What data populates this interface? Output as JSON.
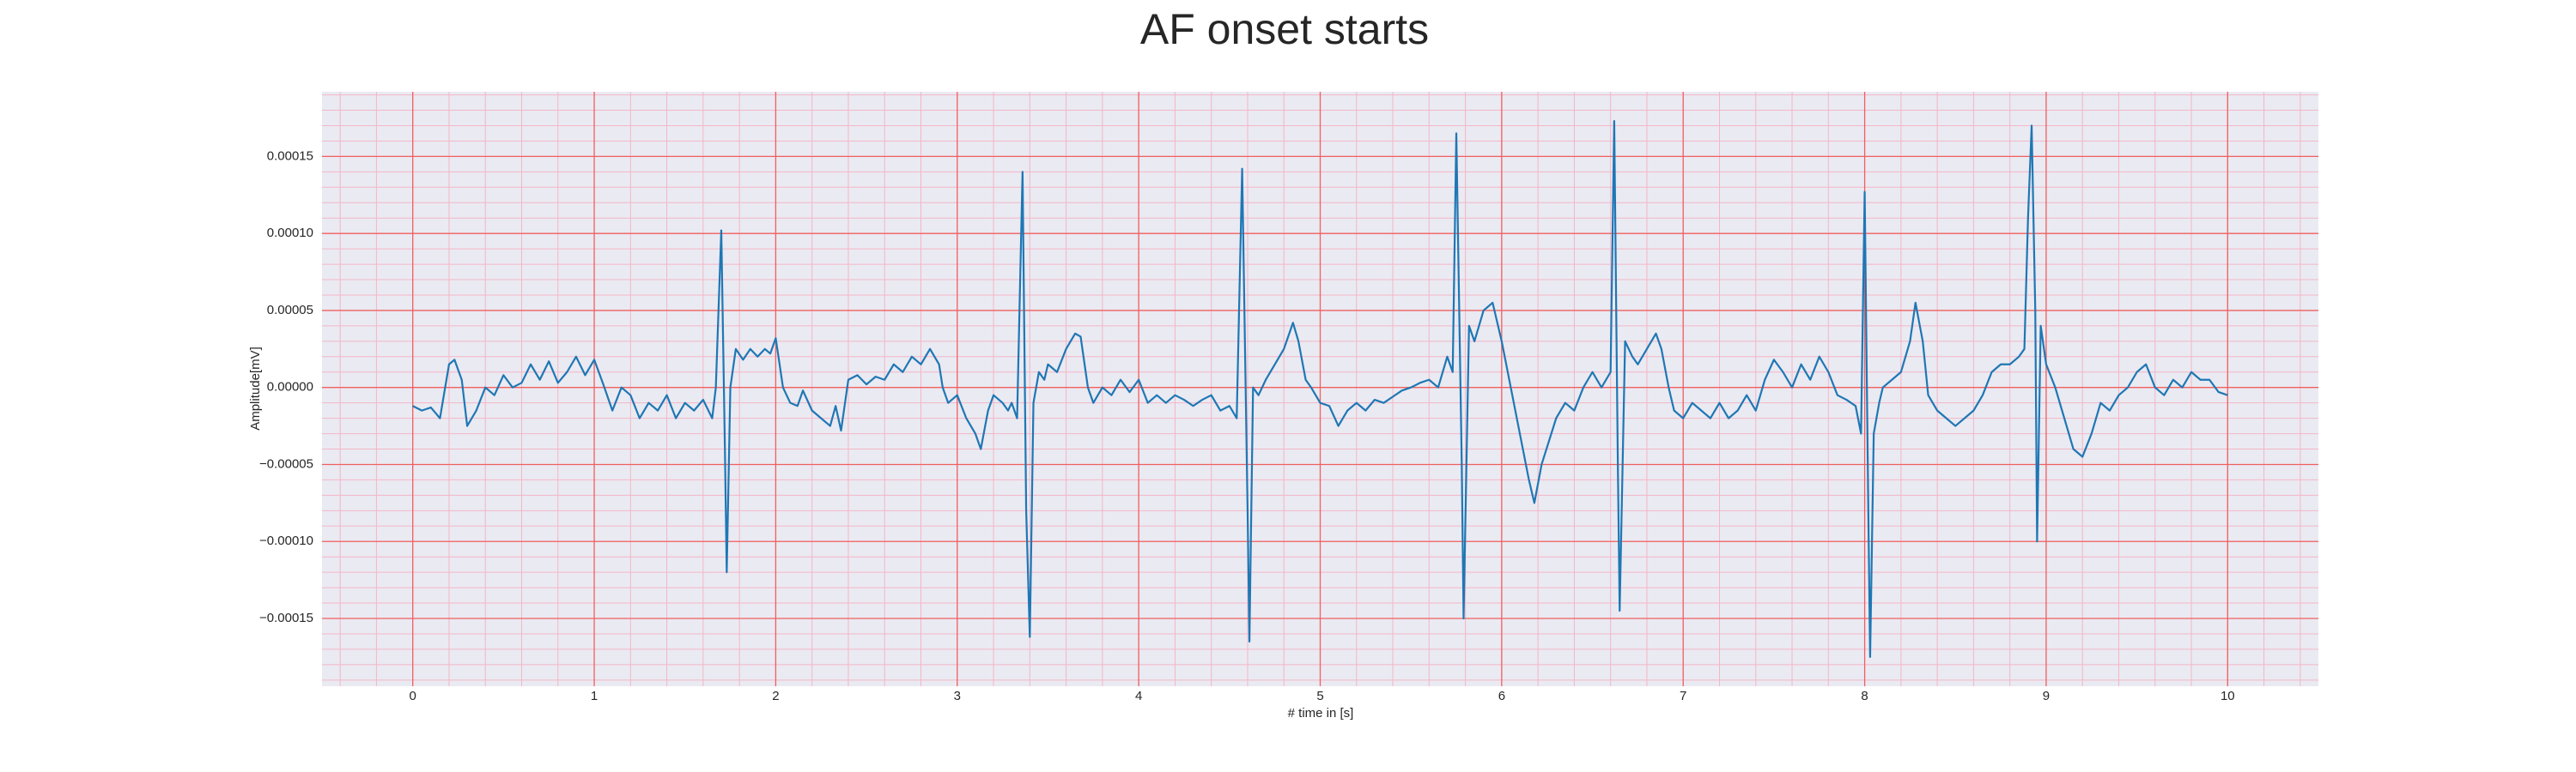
{
  "chart_data": {
    "type": "line",
    "title": "AF onset starts",
    "xlabel": "# time in [s]",
    "ylabel": "Amplitude[mV]",
    "color": "#1f77b4",
    "grid": true,
    "minor_grid": true,
    "xlim": [
      -0.5,
      10.5
    ],
    "ylim": [
      -0.000194,
      0.000192
    ],
    "xticks": [
      0,
      1,
      2,
      3,
      4,
      5,
      6,
      7,
      8,
      9,
      10
    ],
    "yticks": [
      {
        "value": -0.00015,
        "label": "−0.00015"
      },
      {
        "value": -0.0001,
        "label": "−0.00010"
      },
      {
        "value": -5e-05,
        "label": "−0.00005"
      },
      {
        "value": 0,
        "label": "0.00000"
      },
      {
        "value": 5e-05,
        "label": "0.00005"
      },
      {
        "value": 0.0001,
        "label": "0.00010"
      },
      {
        "value": 0.00015,
        "label": "0.00015"
      }
    ],
    "x": [
      0,
      0.05,
      0.1,
      0.15,
      0.2,
      0.23,
      0.27,
      0.3,
      0.35,
      0.4,
      0.45,
      0.5,
      0.55,
      0.6,
      0.65,
      0.7,
      0.75,
      0.8,
      0.85,
      0.9,
      0.95,
      1.0,
      1.05,
      1.1,
      1.15,
      1.2,
      1.25,
      1.3,
      1.35,
      1.4,
      1.45,
      1.5,
      1.55,
      1.6,
      1.65,
      1.67,
      1.7,
      1.72,
      1.73,
      1.75,
      1.78,
      1.82,
      1.86,
      1.9,
      1.94,
      1.97,
      2.0,
      2.04,
      2.08,
      2.12,
      2.15,
      2.2,
      2.25,
      2.3,
      2.33,
      2.36,
      2.4,
      2.45,
      2.5,
      2.55,
      2.6,
      2.65,
      2.7,
      2.75,
      2.8,
      2.85,
      2.9,
      2.92,
      2.95,
      3.0,
      3.05,
      3.1,
      3.13,
      3.17,
      3.2,
      3.25,
      3.28,
      3.3,
      3.33,
      3.36,
      3.38,
      3.4,
      3.42,
      3.45,
      3.48,
      3.5,
      3.55,
      3.6,
      3.65,
      3.68,
      3.72,
      3.75,
      3.8,
      3.85,
      3.9,
      3.95,
      4.0,
      4.05,
      4.1,
      4.15,
      4.2,
      4.25,
      4.3,
      4.35,
      4.4,
      4.45,
      4.5,
      4.54,
      4.57,
      4.6,
      4.61,
      4.63,
      4.66,
      4.7,
      4.75,
      4.8,
      4.85,
      4.88,
      4.92,
      4.95,
      5.0,
      5.05,
      5.1,
      5.15,
      5.2,
      5.25,
      5.3,
      5.35,
      5.4,
      5.45,
      5.5,
      5.55,
      5.6,
      5.65,
      5.7,
      5.73,
      5.75,
      5.78,
      5.79,
      5.82,
      5.85,
      5.9,
      5.95,
      6.0,
      6.05,
      6.1,
      6.15,
      6.18,
      6.22,
      6.3,
      6.35,
      6.4,
      6.45,
      6.5,
      6.55,
      6.6,
      6.62,
      6.64,
      6.65,
      6.68,
      6.72,
      6.75,
      6.8,
      6.85,
      6.88,
      6.92,
      6.95,
      7.0,
      7.05,
      7.1,
      7.15,
      7.2,
      7.25,
      7.3,
      7.35,
      7.4,
      7.45,
      7.5,
      7.55,
      7.6,
      7.65,
      7.7,
      7.75,
      7.8,
      7.85,
      7.9,
      7.95,
      7.98,
      8.0,
      8.02,
      8.03,
      8.05,
      8.08,
      8.1,
      8.15,
      8.2,
      8.25,
      8.28,
      8.32,
      8.35,
      8.4,
      8.45,
      8.5,
      8.55,
      8.6,
      8.65,
      8.7,
      8.75,
      8.8,
      8.85,
      8.88,
      8.9,
      8.92,
      8.94,
      8.95,
      8.97,
      9.0,
      9.05,
      9.1,
      9.15,
      9.2,
      9.25,
      9.3,
      9.35,
      9.4,
      9.45,
      9.5,
      9.55,
      9.6,
      9.65,
      9.7,
      9.75,
      9.8,
      9.85,
      9.9,
      9.95,
      10.0
    ],
    "values": [
      -1.2e-05,
      -1.5e-05,
      -1.3e-05,
      -2e-05,
      1.5e-05,
      1.8e-05,
      5e-06,
      -2.5e-05,
      -1.5e-05,
      0,
      -5e-06,
      8e-06,
      0,
      3e-06,
      1.5e-05,
      5e-06,
      1.7e-05,
      3e-06,
      1e-05,
      2e-05,
      8e-06,
      1.8e-05,
      2e-06,
      -1.5e-05,
      0,
      -5e-06,
      -2e-05,
      -1e-05,
      -1.5e-05,
      -5e-06,
      -2e-05,
      -1e-05,
      -1.5e-05,
      -8e-06,
      -2e-05,
      0,
      0.000102,
      -4e-05,
      -0.00012,
      0,
      2.5e-05,
      1.8e-05,
      2.5e-05,
      2e-05,
      2.5e-05,
      2.2e-05,
      3.2e-05,
      0,
      -1e-05,
      -1.2e-05,
      -2e-06,
      -1.5e-05,
      -2e-05,
      -2.5e-05,
      -1.2e-05,
      -2.8e-05,
      5e-06,
      8e-06,
      2e-06,
      7e-06,
      5e-06,
      1.5e-05,
      1e-05,
      2e-05,
      1.5e-05,
      2.5e-05,
      1.5e-05,
      0,
      -1e-05,
      -5e-06,
      -2e-05,
      -3e-05,
      -4e-05,
      -1.5e-05,
      -5e-06,
      -1e-05,
      -1.5e-05,
      -1e-05,
      -2e-05,
      0.00014,
      -8e-05,
      -0.000162,
      -1e-05,
      1e-05,
      5e-06,
      1.5e-05,
      1e-05,
      2.5e-05,
      3.5e-05,
      3.3e-05,
      0,
      -1e-05,
      0,
      -5e-06,
      5e-06,
      -3e-06,
      5e-06,
      -1e-05,
      -5e-06,
      -1e-05,
      -5e-06,
      -8e-06,
      -1.2e-05,
      -8e-06,
      -5e-06,
      -1.5e-05,
      -1.2e-05,
      -2e-05,
      0.000142,
      -8e-05,
      -0.000165,
      0,
      -5e-06,
      5e-06,
      1.5e-05,
      2.5e-05,
      4.2e-05,
      3e-05,
      5e-06,
      0,
      -1e-05,
      -1.2e-05,
      -2.5e-05,
      -1.5e-05,
      -1e-05,
      -1.5e-05,
      -8e-06,
      -1e-05,
      -6e-06,
      -2e-06,
      0,
      3e-06,
      5e-06,
      0,
      2e-05,
      1e-05,
      0.000165,
      -5e-05,
      -0.00015,
      4e-05,
      3e-05,
      5e-05,
      5.5e-05,
      3e-05,
      0,
      -3e-05,
      -6e-05,
      -7.5e-05,
      -5e-05,
      -2e-05,
      -1e-05,
      -1.5e-05,
      0,
      1e-05,
      0,
      1e-05,
      0.000173,
      -5e-05,
      -0.000145,
      3e-05,
      2e-05,
      1.5e-05,
      2.5e-05,
      3.5e-05,
      2.5e-05,
      0,
      -1.5e-05,
      -2e-05,
      -1e-05,
      -1.5e-05,
      -2e-05,
      -1e-05,
      -2e-05,
      -1.5e-05,
      -5e-06,
      -1.5e-05,
      5e-06,
      1.8e-05,
      1e-05,
      0,
      1.5e-05,
      5e-06,
      2e-05,
      1e-05,
      -5e-06,
      -8e-06,
      -1.2e-05,
      -3e-05,
      0.000127,
      -8e-05,
      -0.000175,
      -3e-05,
      -1e-05,
      0,
      5e-06,
      1e-05,
      3e-05,
      5.5e-05,
      3e-05,
      -5e-06,
      -1.5e-05,
      -2e-05,
      -2.5e-05,
      -2e-05,
      -1.5e-05,
      -5e-06,
      1e-05,
      1.5e-05,
      1.5e-05,
      2e-05,
      2.5e-05,
      0.00011,
      0.00017,
      5e-05,
      -0.0001,
      4e-05,
      1.5e-05,
      0,
      -2e-05,
      -4e-05,
      -4.5e-05,
      -3e-05,
      -1e-05,
      -1.5e-05,
      -5e-06,
      0,
      1e-05,
      1.5e-05,
      0,
      -5e-06,
      5e-06,
      0,
      1e-05,
      5e-06,
      5e-06,
      -3e-06,
      -5e-06
    ]
  }
}
